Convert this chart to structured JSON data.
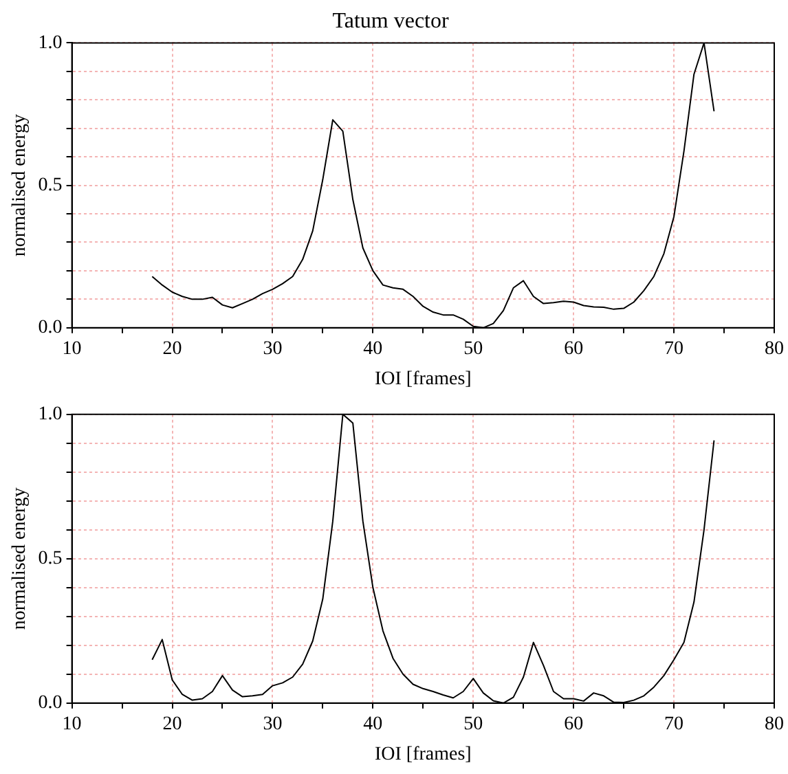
{
  "chart_data": [
    {
      "type": "line",
      "title": "Tatum vector",
      "xlabel": "IOI [frames]",
      "ylabel": "normalised energy",
      "grid": true,
      "marker": "none",
      "line_style": "solid",
      "x": [
        18,
        19,
        20,
        21,
        22,
        23,
        24,
        25,
        26,
        27,
        28,
        29,
        30,
        31,
        32,
        33,
        34,
        35,
        36,
        37,
        38,
        39,
        40,
        41,
        42,
        43,
        44,
        45,
        46,
        47,
        48,
        49,
        50,
        51,
        52,
        53,
        54,
        55,
        56,
        57,
        58,
        59,
        60,
        61,
        62,
        63,
        64,
        65,
        66,
        67,
        68,
        69,
        70,
        71,
        72,
        73,
        74
      ],
      "series": [
        {
          "color": "#000000",
          "values": [
            0.18,
            0.15,
            0.125,
            0.11,
            0.1,
            0.1,
            0.107,
            0.08,
            0.07,
            0.085,
            0.1,
            0.12,
            0.135,
            0.155,
            0.18,
            0.24,
            0.34,
            0.52,
            0.73,
            0.69,
            0.45,
            0.28,
            0.2,
            0.15,
            0.14,
            0.135,
            0.11,
            0.075,
            0.055,
            0.045,
            0.045,
            0.03,
            0.005,
            0,
            0.015,
            0.06,
            0.14,
            0.165,
            0.11,
            0.085,
            0.088,
            0.093,
            0.09,
            0.078,
            0.073,
            0.072,
            0.065,
            0.068,
            0.09,
            0.13,
            0.18,
            0.26,
            0.39,
            0.62,
            0.89,
            1.0,
            0.76
          ]
        }
      ],
      "xlim": [
        10,
        80
      ],
      "xticks": [
        10,
        {
          "value": 15,
          "label": null
        },
        20,
        {
          "value": 25,
          "label": null
        },
        30,
        {
          "value": 35,
          "label": null
        },
        40,
        {
          "value": 45,
          "label": null
        },
        50,
        {
          "value": 55,
          "label": null
        },
        60,
        {
          "value": 65,
          "label": null
        },
        70,
        {
          "value": 75,
          "label": null
        },
        80
      ],
      "ylim": [
        0,
        1
      ],
      "yticks": [
        {
          "value": 0,
          "label": "0.0"
        },
        {
          "value": 0.1,
          "label": null
        },
        {
          "value": 0.2,
          "label": null
        },
        {
          "value": 0.3,
          "label": null
        },
        {
          "value": 0.4,
          "label": null
        },
        {
          "value": 0.5,
          "label": "0.5"
        },
        {
          "value": 0.6,
          "label": null
        },
        {
          "value": 0.7,
          "label": null
        },
        {
          "value": 0.8,
          "label": null
        },
        {
          "value": 0.9,
          "label": null
        },
        {
          "value": 1,
          "label": "1.0"
        }
      ]
    },
    {
      "type": "line",
      "xlabel": "IOI [frames]",
      "ylabel": "normalised energy",
      "grid": true,
      "marker": "none",
      "line_style": "solid",
      "x": [
        18,
        19,
        20,
        21,
        22,
        23,
        24,
        25,
        26,
        27,
        28,
        29,
        30,
        31,
        32,
        33,
        34,
        35,
        36,
        37,
        38,
        39,
        40,
        41,
        42,
        43,
        44,
        45,
        46,
        47,
        48,
        49,
        50,
        51,
        52,
        53,
        54,
        55,
        56,
        57,
        58,
        59,
        60,
        61,
        62,
        63,
        64,
        65,
        66,
        67,
        68,
        69,
        70,
        71,
        72,
        73,
        74
      ],
      "series": [
        {
          "color": "#000000",
          "values": [
            0.15,
            0.22,
            0.08,
            0.03,
            0.01,
            0.015,
            0.04,
            0.095,
            0.045,
            0.022,
            0.025,
            0.03,
            0.06,
            0.07,
            0.09,
            0.135,
            0.215,
            0.36,
            0.63,
            1.0,
            0.97,
            0.63,
            0.4,
            0.25,
            0.155,
            0.1,
            0.065,
            0.05,
            0.04,
            0.028,
            0.018,
            0.04,
            0.085,
            0.035,
            0.008,
            0,
            0.02,
            0.09,
            0.21,
            0.13,
            0.04,
            0.015,
            0.015,
            0.007,
            0.035,
            0.025,
            0.003,
            0.002,
            0.01,
            0.025,
            0.055,
            0.095,
            0.15,
            0.21,
            0.35,
            0.6,
            0.91
          ]
        }
      ],
      "xlim": [
        10,
        80
      ],
      "xticks": [
        10,
        {
          "value": 15,
          "label": null
        },
        20,
        {
          "value": 25,
          "label": null
        },
        30,
        {
          "value": 35,
          "label": null
        },
        40,
        {
          "value": 45,
          "label": null
        },
        50,
        {
          "value": 55,
          "label": null
        },
        60,
        {
          "value": 65,
          "label": null
        },
        70,
        {
          "value": 75,
          "label": null
        },
        80
      ],
      "ylim": [
        0,
        1
      ],
      "yticks": [
        {
          "value": 0,
          "label": "0.0"
        },
        {
          "value": 0.1,
          "label": null
        },
        {
          "value": 0.2,
          "label": null
        },
        {
          "value": 0.3,
          "label": null
        },
        {
          "value": 0.4,
          "label": null
        },
        {
          "value": 0.5,
          "label": "0.5"
        },
        {
          "value": 0.6,
          "label": null
        },
        {
          "value": 0.7,
          "label": null
        },
        {
          "value": 0.8,
          "label": null
        },
        {
          "value": 0.9,
          "label": null
        },
        {
          "value": 1,
          "label": "1.0"
        }
      ]
    }
  ]
}
